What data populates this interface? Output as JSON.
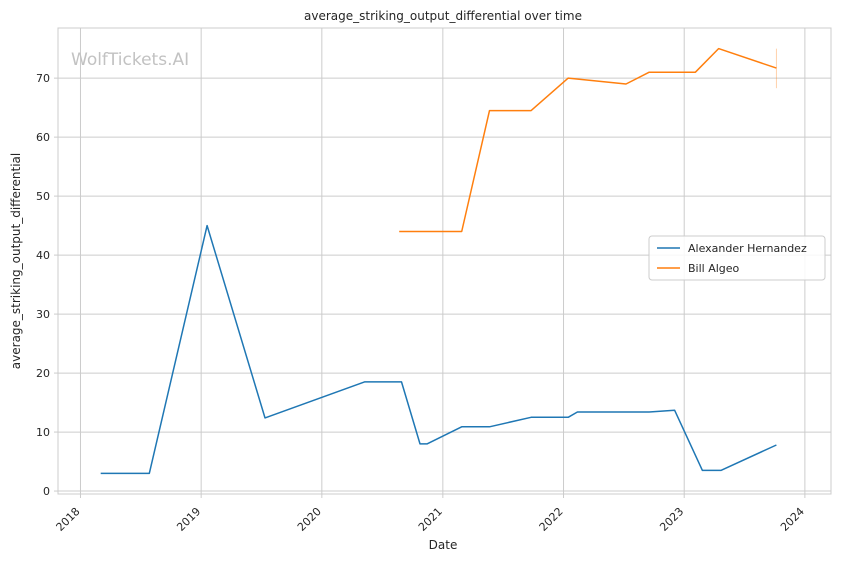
{
  "watermark": "WolfTickets.AI",
  "chart_data": {
    "type": "line",
    "title": "average_striking_output_differential over time",
    "xlabel": "Date",
    "ylabel": "average_striking_output_differential",
    "x_ticks": [
      "2018",
      "2019",
      "2020",
      "2021",
      "2022",
      "2023",
      "2024"
    ],
    "y_ticks": [
      0,
      10,
      20,
      30,
      40,
      50,
      60,
      70
    ],
    "xlim": [
      "2017-10-25",
      "2024-03-20"
    ],
    "ylim": [
      -0.5,
      78.5
    ],
    "grid": true,
    "legend_position": "center-right",
    "series": [
      {
        "name": "Alexander Hernandez",
        "color": "#1f77b4",
        "points": [
          {
            "date": "2018-03-03",
            "value": 3.0
          },
          {
            "date": "2018-07-28",
            "value": 3.0
          },
          {
            "date": "2019-01-19",
            "value": 45.0
          },
          {
            "date": "2019-07-13",
            "value": 12.4
          },
          {
            "date": "2020-05-09",
            "value": 18.5
          },
          {
            "date": "2020-08-29",
            "value": 18.5
          },
          {
            "date": "2020-10-24",
            "value": 8.0
          },
          {
            "date": "2020-11-14",
            "value": 8.0
          },
          {
            "date": "2021-02-27",
            "value": 10.9
          },
          {
            "date": "2021-05-22",
            "value": 10.9
          },
          {
            "date": "2021-09-25",
            "value": 12.5
          },
          {
            "date": "2022-01-15",
            "value": 12.5
          },
          {
            "date": "2022-02-12",
            "value": 13.4
          },
          {
            "date": "2022-09-17",
            "value": 13.4
          },
          {
            "date": "2022-12-03",
            "value": 13.7
          },
          {
            "date": "2023-02-25",
            "value": 3.5
          },
          {
            "date": "2023-04-22",
            "value": 3.5
          },
          {
            "date": "2023-10-07",
            "value": 7.8
          }
        ]
      },
      {
        "name": "Bill Algeo",
        "color": "#ff7f0e",
        "points": [
          {
            "date": "2020-08-22",
            "value": 44.0
          },
          {
            "date": "2021-02-27",
            "value": 44.0
          },
          {
            "date": "2021-05-22",
            "value": 64.5
          },
          {
            "date": "2021-09-25",
            "value": 64.5
          },
          {
            "date": "2022-01-15",
            "value": 70.0
          },
          {
            "date": "2022-07-09",
            "value": 69.0
          },
          {
            "date": "2022-09-17",
            "value": 71.0
          },
          {
            "date": "2023-02-04",
            "value": 71.0
          },
          {
            "date": "2023-04-15",
            "value": 75.0
          },
          {
            "date": "2023-10-07",
            "value": 71.7
          }
        ],
        "error_bar": {
          "date": "2023-10-07",
          "low": 68.3,
          "high": 75.0
        }
      }
    ]
  }
}
